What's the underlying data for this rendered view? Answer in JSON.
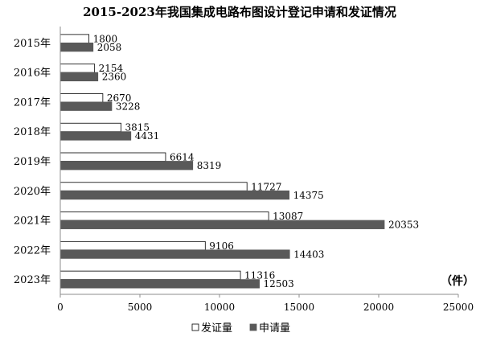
{
  "chart_data": {
    "type": "bar",
    "orientation": "horizontal",
    "title": "2015-2023年我国集成电路布图设计登记申请和发证情况",
    "unit": "（件）",
    "categories": [
      "2015年",
      "2016年",
      "2017年",
      "2018年",
      "2019年",
      "2020年",
      "2021年",
      "2022年",
      "2023年"
    ],
    "series": [
      {
        "name": "发证量",
        "values": [
          1800,
          2154,
          2670,
          3815,
          6614,
          11727,
          13087,
          9106,
          11316
        ],
        "color": "#ffffff",
        "stroke": "#000000"
      },
      {
        "name": "申请量",
        "values": [
          2058,
          2360,
          3228,
          4431,
          8319,
          14375,
          20353,
          14403,
          12503
        ],
        "color": "#595959",
        "stroke": "#595959"
      }
    ],
    "xlim": [
      0,
      25000
    ],
    "xticks": [
      0,
      5000,
      10000,
      15000,
      20000,
      25000
    ],
    "grid": false,
    "legend": "bottom"
  }
}
